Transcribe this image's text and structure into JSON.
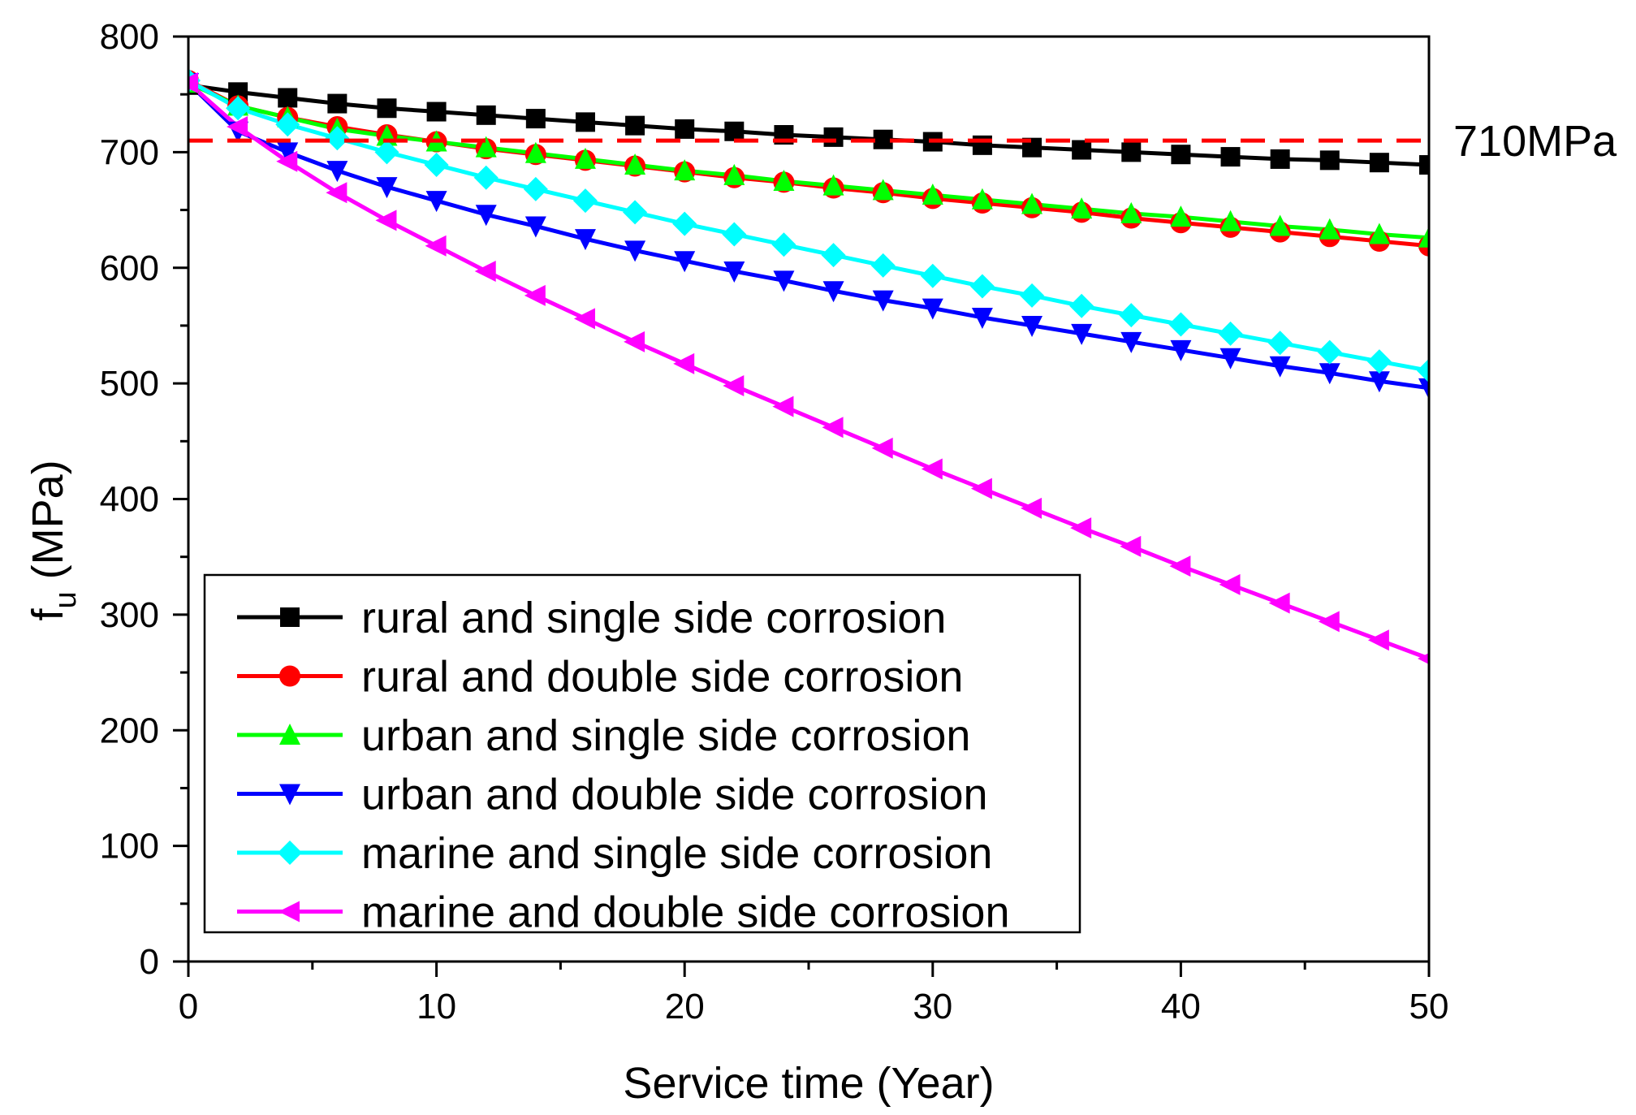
{
  "chart_data": {
    "type": "line",
    "title": "",
    "xlabel": "Service time (Year)",
    "ylabel_main": "f",
    "ylabel_sub": "u",
    "ylabel_unit": " (MPa)",
    "xlim": [
      0,
      50
    ],
    "ylim": [
      0,
      800
    ],
    "xticks": [
      0,
      10,
      20,
      30,
      40,
      50
    ],
    "yticks": [
      0,
      100,
      200,
      300,
      400,
      500,
      600,
      700,
      800
    ],
    "xtick_labels": [
      "0",
      "10",
      "20",
      "30",
      "40",
      "50"
    ],
    "ytick_labels": [
      "0",
      "100",
      "200",
      "300",
      "400",
      "500",
      "600",
      "700",
      "800"
    ],
    "grid": false,
    "legend_position": "bottom-left",
    "reference_line": {
      "value": 710,
      "label": "710MPa",
      "color": "#ff0000",
      "style": "dashed"
    },
    "x": [
      0,
      2,
      4,
      6,
      8,
      10,
      12,
      14,
      16,
      18,
      20,
      22,
      24,
      26,
      28,
      30,
      32,
      34,
      36,
      38,
      40,
      42,
      44,
      46,
      48,
      50
    ],
    "series": [
      {
        "name": "rural and single side corrosion",
        "color": "#000000",
        "marker": "square",
        "values": [
          758,
          752,
          747,
          742,
          738,
          735,
          732,
          729,
          726,
          723,
          720,
          718,
          715,
          713,
          711,
          709,
          706,
          704,
          702,
          700,
          698,
          696,
          694,
          693,
          691,
          689
        ]
      },
      {
        "name": "rural and double side corrosion",
        "color": "#ff0000",
        "marker": "circle",
        "values": [
          762,
          740,
          730,
          722,
          715,
          709,
          703,
          698,
          693,
          688,
          683,
          678,
          674,
          669,
          665,
          660,
          656,
          652,
          648,
          643,
          639,
          635,
          631,
          627,
          623,
          619
        ]
      },
      {
        "name": "urban and single side corrosion",
        "color": "#00ff00",
        "marker": "triangle-up",
        "values": [
          760,
          740,
          730,
          720,
          714,
          709,
          704,
          699,
          694,
          689,
          684,
          680,
          675,
          671,
          667,
          663,
          659,
          655,
          651,
          647,
          644,
          640,
          636,
          633,
          629,
          626
        ]
      },
      {
        "name": "urban and double side corrosion",
        "color": "#0000ff",
        "marker": "triangle-down",
        "values": [
          760,
          718,
          700,
          684,
          670,
          658,
          646,
          636,
          625,
          615,
          606,
          597,
          589,
          580,
          572,
          565,
          557,
          550,
          543,
          536,
          529,
          522,
          515,
          509,
          502,
          496
        ]
      },
      {
        "name": "marine and single side corrosion",
        "color": "#00ffff",
        "marker": "diamond",
        "values": [
          762,
          738,
          724,
          712,
          700,
          689,
          678,
          668,
          658,
          648,
          638,
          629,
          620,
          611,
          602,
          593,
          584,
          576,
          567,
          559,
          551,
          543,
          535,
          527,
          519,
          511
        ]
      },
      {
        "name": "marine and double side corrosion",
        "color": "#ff00ff",
        "marker": "triangle-left",
        "values": [
          760,
          722,
          692,
          665,
          641,
          619,
          597,
          576,
          556,
          536,
          517,
          498,
          480,
          462,
          444,
          426,
          409,
          392,
          375,
          359,
          342,
          326,
          310,
          294,
          278,
          262
        ]
      }
    ]
  }
}
